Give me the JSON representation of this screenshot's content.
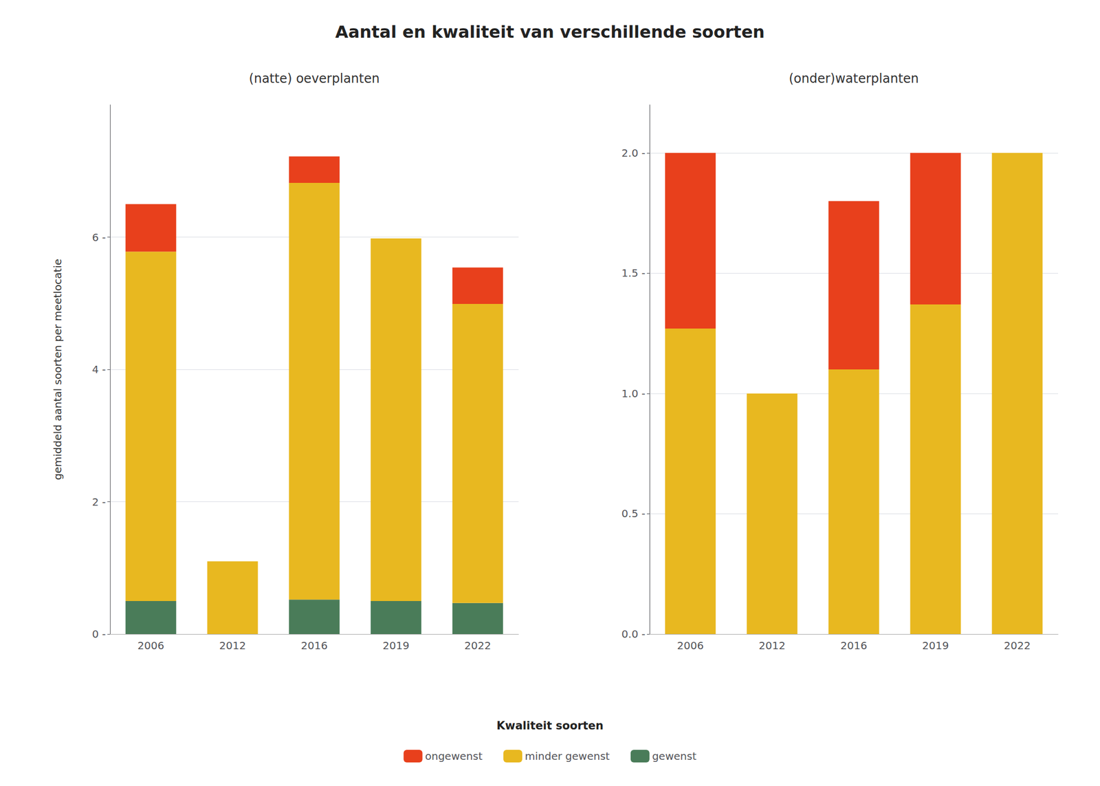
{
  "chart_data": [
    {
      "type": "bar",
      "stacked": true,
      "grid": true,
      "legend": "bottom",
      "title": "Aantal en kwaliteit van verschillende soorten",
      "subtitle": "(natte) oeverplanten",
      "ylabel": "gemiddeld aantal soorten per meetlocatie",
      "legend_title": "Kwaliteit soorten",
      "categories": [
        "2006",
        "2012",
        "2016",
        "2019",
        "2022"
      ],
      "series": [
        {
          "name": "gewenst",
          "color": "#4A7C59",
          "values": [
            0.5,
            0.0,
            0.52,
            0.5,
            0.47
          ]
        },
        {
          "name": "minder gewenst",
          "color": "#E8B820",
          "values": [
            5.28,
            1.1,
            6.3,
            5.48,
            4.52
          ]
        },
        {
          "name": "ongewenst",
          "color": "#E8401C",
          "values": [
            0.72,
            0.0,
            0.4,
            0.0,
            0.55
          ]
        }
      ],
      "ylim": [
        0,
        8.0
      ],
      "yticks": [
        {
          "value": 0,
          "label": "0 -"
        },
        {
          "value": 2,
          "label": "2 -"
        },
        {
          "value": 4,
          "label": "4 -"
        },
        {
          "value": 6,
          "label": "6 -"
        }
      ]
    },
    {
      "type": "bar",
      "stacked": true,
      "grid": true,
      "legend": "bottom",
      "subtitle": "(onder)waterplanten",
      "categories": [
        "2006",
        "2012",
        "2016",
        "2019",
        "2022"
      ],
      "series": [
        {
          "name": "gewenst",
          "color": "#4A7C59",
          "values": [
            0.0,
            0.0,
            0.0,
            0.0,
            0.0
          ]
        },
        {
          "name": "minder gewenst",
          "color": "#E8B820",
          "values": [
            1.27,
            1.0,
            1.1,
            1.37,
            2.0
          ]
        },
        {
          "name": "ongewenst",
          "color": "#E8401C",
          "values": [
            0.73,
            0.0,
            0.7,
            0.63,
            0.0
          ]
        }
      ],
      "ylim": [
        0,
        2.2
      ],
      "yticks": [
        {
          "value": 0.0,
          "label": "0.0 -"
        },
        {
          "value": 0.5,
          "label": "0.5 -"
        },
        {
          "value": 1.0,
          "label": "1.0 -"
        },
        {
          "value": 1.5,
          "label": "1.5 -"
        },
        {
          "value": 2.0,
          "label": "2.0 -"
        }
      ]
    }
  ]
}
